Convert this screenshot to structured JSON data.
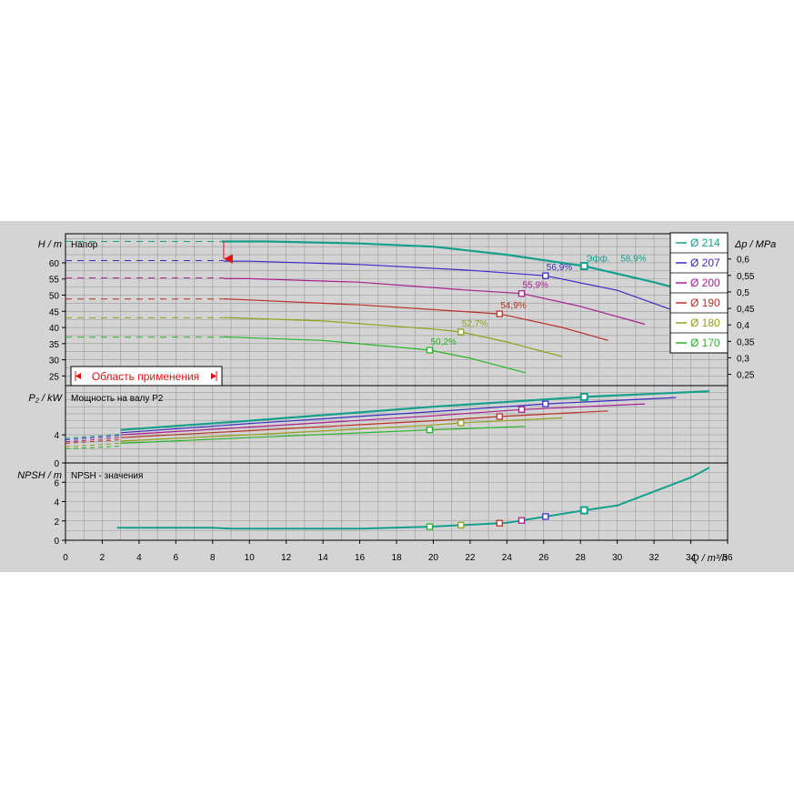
{
  "chart_data": {
    "type": "line",
    "title": "",
    "xlabel": "Q / m³/h",
    "x_ticks": [
      0,
      2,
      4,
      6,
      8,
      10,
      12,
      14,
      16,
      18,
      20,
      22,
      24,
      26,
      28,
      30,
      32,
      34,
      36
    ],
    "panels": {
      "head": {
        "ylabel": "H / m",
        "label": "Напор",
        "ylim": [
          22,
          69
        ],
        "y_ticks": [
          25,
          30,
          35,
          40,
          45,
          50,
          55,
          60
        ],
        "y2label": "Δp / MPa",
        "y2_ticks": [
          "0,25",
          "0,3",
          "0,35",
          "0,4",
          "0,45",
          "0,5",
          "0,55",
          "0,6"
        ],
        "y2_values": [
          0.25,
          0.3,
          0.35,
          0.4,
          0.45,
          0.5,
          0.55,
          0.6
        ]
      },
      "power": {
        "ylabel": "P₂ / kW",
        "label": "Мощность на валу P2",
        "ylim": [
          0,
          11
        ],
        "y_ticks": [
          0,
          4
        ]
      },
      "npsh": {
        "ylabel": "NPSH / m",
        "label": "NPSH - значения",
        "ylim": [
          0,
          8
        ],
        "y_ticks": [
          0,
          2,
          4,
          6
        ]
      }
    },
    "efficiency_label": "Эфф.",
    "series": [
      {
        "name": "Ø 214",
        "color": "#15a08c",
        "eff_text": "58,9%",
        "eff_q": 28.2,
        "head": [
          [
            3,
            66.6
          ],
          [
            8.5,
            66.6
          ],
          [
            11,
            66.6
          ],
          [
            16,
            66
          ],
          [
            20,
            65
          ],
          [
            24,
            62.5
          ],
          [
            28.2,
            59
          ],
          [
            32,
            54
          ],
          [
            35,
            49.5
          ]
        ],
        "power": [
          [
            3,
            4.7
          ],
          [
            10,
            6
          ],
          [
            20,
            8
          ],
          [
            28.2,
            9.4
          ],
          [
            35,
            10.2
          ]
        ],
        "power_start": [
          [
            0,
            3.5
          ],
          [
            3,
            4.1
          ]
        ]
      },
      {
        "name": "Ø 207",
        "color": "#3a2cc4",
        "eff_text": "56,9%",
        "eff_q": 26.1,
        "head": [
          [
            3,
            60.7
          ],
          [
            10,
            60.5
          ],
          [
            16,
            59.5
          ],
          [
            22,
            57.7
          ],
          [
            26.1,
            56
          ],
          [
            30,
            51.5
          ],
          [
            33.2,
            45
          ]
        ],
        "power": [
          [
            3,
            4.3
          ],
          [
            10,
            5.6
          ],
          [
            20,
            7.3
          ],
          [
            26.1,
            8.4
          ],
          [
            33.2,
            9.3
          ]
        ],
        "power_start": [
          [
            0,
            3.3
          ],
          [
            3,
            3.9
          ]
        ]
      },
      {
        "name": "Ø 200",
        "color": "#a8208e",
        "eff_text": "55,9%",
        "eff_q": 24.8,
        "head": [
          [
            3,
            55.3
          ],
          [
            10,
            55.1
          ],
          [
            16,
            54
          ],
          [
            22,
            51.5
          ],
          [
            24.8,
            50.5
          ],
          [
            28,
            46.5
          ],
          [
            31.5,
            41
          ]
        ],
        "power": [
          [
            3,
            4
          ],
          [
            10,
            5.1
          ],
          [
            20,
            6.7
          ],
          [
            24.8,
            7.6
          ],
          [
            31.5,
            8.4
          ]
        ],
        "power_start": [
          [
            0,
            3
          ],
          [
            3,
            3.6
          ]
        ]
      },
      {
        "name": "Ø 190",
        "color": "#b83225",
        "eff_text": "54,9%",
        "eff_q": 23.6,
        "head": [
          [
            3,
            48.8
          ],
          [
            8,
            49
          ],
          [
            16,
            47
          ],
          [
            22,
            44.8
          ],
          [
            23.6,
            44.2
          ],
          [
            27,
            40
          ],
          [
            29.5,
            36
          ]
        ],
        "power": [
          [
            3,
            3.6
          ],
          [
            10,
            4.6
          ],
          [
            20,
            6
          ],
          [
            23.6,
            6.6
          ],
          [
            29.5,
            7.4
          ]
        ],
        "power_start": [
          [
            0,
            2.8
          ],
          [
            3,
            3.3
          ]
        ]
      },
      {
        "name": "Ø 180",
        "color": "#90a21c",
        "eff_text": "52,7%",
        "eff_q": 21.5,
        "head": [
          [
            3,
            43
          ],
          [
            8,
            43.2
          ],
          [
            14,
            42
          ],
          [
            20,
            39.5
          ],
          [
            21.5,
            38.6
          ],
          [
            24,
            35.5
          ],
          [
            27,
            31
          ]
        ],
        "power": [
          [
            3,
            3.1
          ],
          [
            10,
            4
          ],
          [
            20,
            5.4
          ],
          [
            21.5,
            5.7
          ],
          [
            27,
            6.4
          ]
        ],
        "power_start": [
          [
            0,
            2.3
          ],
          [
            3,
            2.8
          ]
        ]
      },
      {
        "name": "Ø 170",
        "color": "#28b428",
        "eff_text": "50,2%",
        "eff_q": 19.8,
        "head": [
          [
            3,
            37
          ],
          [
            8,
            37.2
          ],
          [
            14,
            36
          ],
          [
            19.8,
            33
          ],
          [
            22,
            30.5
          ],
          [
            25,
            26
          ]
        ],
        "power": [
          [
            3,
            2.8
          ],
          [
            10,
            3.6
          ],
          [
            19.8,
            4.7
          ],
          [
            25,
            5.2
          ]
        ],
        "power_start": [
          [
            0,
            2
          ],
          [
            3,
            2.4
          ]
        ]
      }
    ],
    "npsh_curve": [
      [
        2.8,
        1.3
      ],
      [
        8,
        1.3
      ],
      [
        9,
        1.2
      ],
      [
        16,
        1.2
      ],
      [
        19.8,
        1.4
      ],
      [
        24,
        1.8
      ],
      [
        28.2,
        3.1
      ],
      [
        30,
        3.6
      ],
      [
        34,
        6.5
      ],
      [
        35,
        7.5
      ]
    ],
    "application_range_label": "Область применения",
    "application_range_q": [
      8.6,
      35
    ],
    "legend_placement": "right",
    "grid": true
  }
}
